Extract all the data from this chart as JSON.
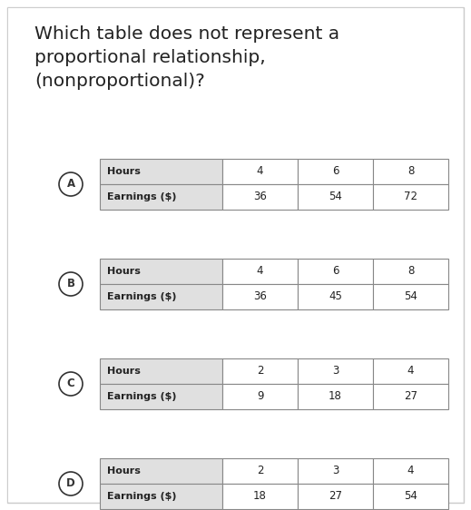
{
  "title_lines": [
    "Which table does not represent a",
    "proportional relationship,",
    "(nonproportional)?"
  ],
  "title_fontsize": 14.5,
  "background_color": "#ffffff",
  "outer_bg": "#f0f0f0",
  "tables": [
    {
      "label": "A",
      "row1_header": "Hours",
      "row2_header": "Earnings ($)",
      "col_values": [
        [
          "4",
          "6",
          "8"
        ],
        [
          "36",
          "54",
          "72"
        ]
      ]
    },
    {
      "label": "B",
      "row1_header": "Hours",
      "row2_header": "Earnings ($)",
      "col_values": [
        [
          "4",
          "6",
          "8"
        ],
        [
          "36",
          "45",
          "54"
        ]
      ]
    },
    {
      "label": "C",
      "row1_header": "Hours",
      "row2_header": "Earnings ($)",
      "col_values": [
        [
          "2",
          "3",
          "4"
        ],
        [
          "9",
          "18",
          "27"
        ]
      ]
    },
    {
      "label": "D",
      "row1_header": "Hours",
      "row2_header": "Earnings ($)",
      "col_values": [
        [
          "2",
          "3",
          "4"
        ],
        [
          "18",
          "27",
          "54"
        ]
      ]
    }
  ],
  "header_bg": "#e0e0e0",
  "cell_bg": "#ffffff",
  "border_color": "#888888",
  "text_color": "#222222",
  "label_color": "#333333",
  "fig_width": 5.19,
  "fig_height": 5.62,
  "dpi": 100
}
